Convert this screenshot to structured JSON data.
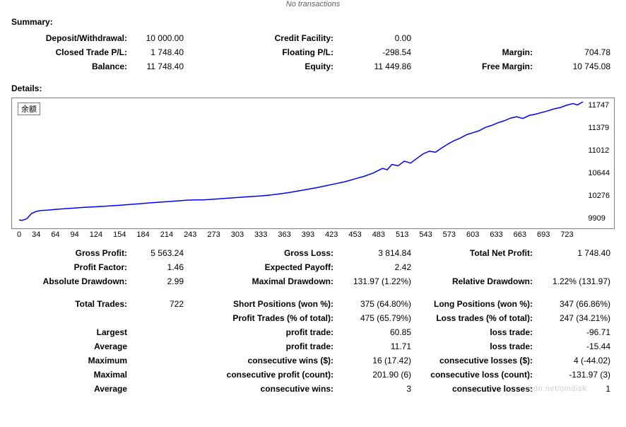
{
  "header_msg": "No transactions",
  "sections": {
    "summary": "Summary:",
    "details": "Details:"
  },
  "summary": {
    "rows": [
      [
        [
          "Deposit/Withdrawal:",
          "10 000.00"
        ],
        [
          "Credit Facility:",
          "0.00"
        ],
        [
          "",
          ""
        ]
      ],
      [
        [
          "Closed Trade P/L:",
          "1 748.40"
        ],
        [
          "Floating P/L:",
          "-298.54"
        ],
        [
          "Margin:",
          "704.78"
        ]
      ],
      [
        [
          "Balance:",
          "11 748.40"
        ],
        [
          "Equity:",
          "11 449.86"
        ],
        [
          "Free Margin:",
          "10 745.08"
        ]
      ]
    ]
  },
  "chart": {
    "legend": "余额",
    "line_color": "#0000ff",
    "border_color": "#808080",
    "background": "#ffffff",
    "line_width": 1.5,
    "x_ticks": [
      "0",
      "34",
      "64",
      "94",
      "124",
      "154",
      "184",
      "214",
      "243",
      "273",
      "303",
      "333",
      "363",
      "393",
      "423",
      "453",
      "483",
      "513",
      "543",
      "573",
      "603",
      "633",
      "663",
      "693",
      "723"
    ],
    "y_ticks": [
      "11747",
      "11379",
      "11012",
      "10644",
      "10276",
      "9909"
    ],
    "xlim": [
      0,
      723
    ],
    "ylim": [
      9909,
      11747
    ],
    "series": [
      [
        0,
        9960
      ],
      [
        4,
        9955
      ],
      [
        10,
        9980
      ],
      [
        16,
        10060
      ],
      [
        22,
        10090
      ],
      [
        28,
        10105
      ],
      [
        36,
        10110
      ],
      [
        46,
        10120
      ],
      [
        58,
        10130
      ],
      [
        70,
        10140
      ],
      [
        82,
        10150
      ],
      [
        94,
        10158
      ],
      [
        106,
        10165
      ],
      [
        118,
        10175
      ],
      [
        130,
        10185
      ],
      [
        142,
        10195
      ],
      [
        154,
        10205
      ],
      [
        166,
        10218
      ],
      [
        178,
        10228
      ],
      [
        190,
        10238
      ],
      [
        202,
        10248
      ],
      [
        214,
        10260
      ],
      [
        226,
        10264
      ],
      [
        238,
        10266
      ],
      [
        250,
        10275
      ],
      [
        262,
        10285
      ],
      [
        274,
        10295
      ],
      [
        286,
        10305
      ],
      [
        298,
        10315
      ],
      [
        310,
        10325
      ],
      [
        322,
        10338
      ],
      [
        334,
        10355
      ],
      [
        346,
        10375
      ],
      [
        358,
        10400
      ],
      [
        370,
        10425
      ],
      [
        382,
        10450
      ],
      [
        394,
        10480
      ],
      [
        406,
        10510
      ],
      [
        418,
        10540
      ],
      [
        430,
        10580
      ],
      [
        442,
        10620
      ],
      [
        454,
        10670
      ],
      [
        466,
        10740
      ],
      [
        472,
        10720
      ],
      [
        478,
        10800
      ],
      [
        486,
        10780
      ],
      [
        494,
        10850
      ],
      [
        502,
        10820
      ],
      [
        510,
        10890
      ],
      [
        518,
        10960
      ],
      [
        526,
        11000
      ],
      [
        534,
        10985
      ],
      [
        542,
        11050
      ],
      [
        550,
        11110
      ],
      [
        558,
        11160
      ],
      [
        566,
        11200
      ],
      [
        574,
        11250
      ],
      [
        582,
        11280
      ],
      [
        590,
        11310
      ],
      [
        598,
        11360
      ],
      [
        606,
        11390
      ],
      [
        614,
        11430
      ],
      [
        622,
        11460
      ],
      [
        630,
        11500
      ],
      [
        638,
        11520
      ],
      [
        646,
        11495
      ],
      [
        654,
        11540
      ],
      [
        662,
        11560
      ],
      [
        670,
        11585
      ],
      [
        678,
        11610
      ],
      [
        686,
        11640
      ],
      [
        694,
        11660
      ],
      [
        702,
        11695
      ],
      [
        710,
        11720
      ],
      [
        716,
        11700
      ],
      [
        723,
        11747
      ]
    ]
  },
  "details": {
    "rows": [
      [
        [
          "Gross Profit:",
          "5 563.24"
        ],
        [
          "Gross Loss:",
          "3 814.84"
        ],
        [
          "Total Net Profit:",
          "1 748.40"
        ]
      ],
      [
        [
          "Profit Factor:",
          "1.46"
        ],
        [
          "Expected Payoff:",
          "2.42"
        ],
        [
          "",
          ""
        ]
      ],
      [
        [
          "Absolute Drawdown:",
          "2.99"
        ],
        [
          "Maximal Drawdown:",
          "131.97 (1.22%)"
        ],
        [
          "Relative Drawdown:",
          "1.22% (131.97)"
        ]
      ]
    ],
    "rows2": [
      [
        [
          "Total Trades:",
          "722"
        ],
        [
          "Short Positions (won %):",
          "375 (64.80%)"
        ],
        [
          "Long Positions (won %):",
          "347 (66.86%)"
        ]
      ],
      [
        [
          "",
          ""
        ],
        [
          "Profit Trades (% of total):",
          "475 (65.79%)"
        ],
        [
          "Loss trades (% of total):",
          "247 (34.21%)"
        ]
      ],
      [
        [
          "Largest",
          ""
        ],
        [
          "profit trade:",
          "60.85"
        ],
        [
          "loss trade:",
          "-96.71"
        ]
      ],
      [
        [
          "Average",
          ""
        ],
        [
          "profit trade:",
          "11.71"
        ],
        [
          "loss trade:",
          "-15.44"
        ]
      ],
      [
        [
          "Maximum",
          ""
        ],
        [
          "consecutive wins ($):",
          "16 (17.42)"
        ],
        [
          "consecutive losses ($):",
          "4 (-44.02)"
        ]
      ],
      [
        [
          "Maximal",
          ""
        ],
        [
          "consecutive profit (count):",
          "201.90 (6)"
        ],
        [
          "consecutive loss (count):",
          "-131.97 (3)"
        ]
      ],
      [
        [
          "Average",
          ""
        ],
        [
          "consecutive wins:",
          "3"
        ],
        [
          "consecutive losses:",
          "1"
        ]
      ]
    ]
  },
  "watermark": "csdn.net/omdisk"
}
